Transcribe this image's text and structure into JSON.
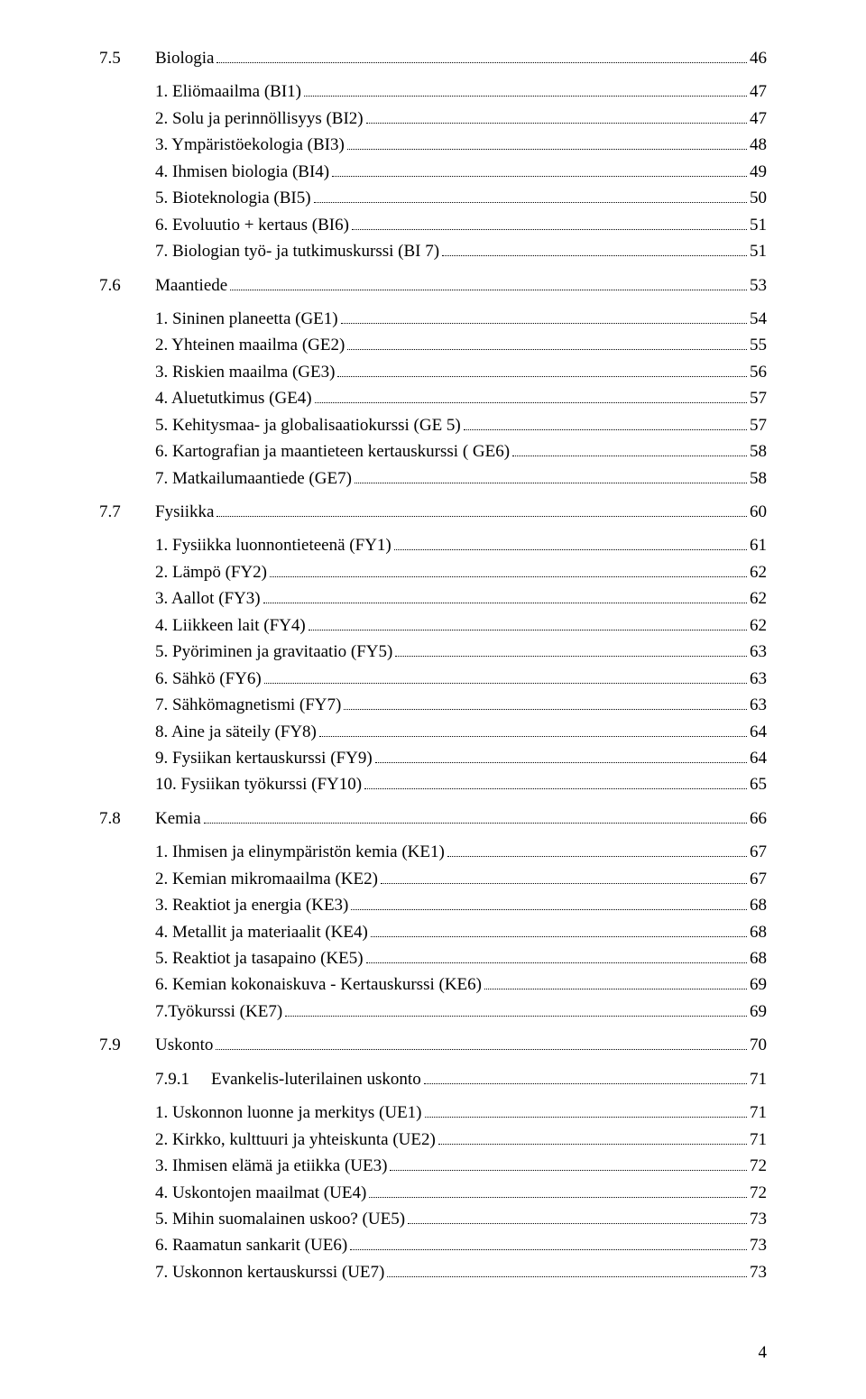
{
  "page_number": "4",
  "sections": [
    {
      "num": "7.5",
      "title": "Biologia",
      "page": "46",
      "items": [
        {
          "label": "1. Eliömaailma (BI1)",
          "page": "47"
        },
        {
          "label": "2. Solu ja perinnöllisyys (BI2)",
          "page": "47"
        },
        {
          "label": "3. Ympäristöekologia (BI3)",
          "page": "48"
        },
        {
          "label": "4. Ihmisen biologia (BI4)",
          "page": "49"
        },
        {
          "label": "5. Bioteknologia (BI5)",
          "page": "50"
        },
        {
          "label": "6. Evoluutio + kertaus (BI6)",
          "page": "51"
        },
        {
          "label": "7. Biologian työ- ja tutkimuskurssi (BI 7)",
          "page": "51"
        }
      ]
    },
    {
      "num": "7.6",
      "title": "Maantiede",
      "page": "53",
      "items": [
        {
          "label": "1. Sininen planeetta (GE1)",
          "page": "54"
        },
        {
          "label": "2. Yhteinen maailma (GE2)",
          "page": "55"
        },
        {
          "label": "3. Riskien maailma (GE3)",
          "page": "56"
        },
        {
          "label": "4. Aluetutkimus (GE4)",
          "page": "57"
        },
        {
          "label": "5. Kehitysmaa- ja globalisaatiokurssi (GE 5)",
          "page": "57"
        },
        {
          "label": "6. Kartografian ja maantieteen kertauskurssi ( GE6)",
          "page": "58"
        },
        {
          "label": "7. Matkailumaantiede (GE7)",
          "page": "58"
        }
      ]
    },
    {
      "num": "7.7",
      "title": "Fysiikka",
      "page": "60",
      "items": [
        {
          "label": "1. Fysiikka luonnontieteenä (FY1)",
          "page": "61"
        },
        {
          "label": "2. Lämpö (FY2)",
          "page": "62"
        },
        {
          "label": "3. Aallot (FY3)",
          "page": "62"
        },
        {
          "label": "4. Liikkeen lait (FY4)",
          "page": "62"
        },
        {
          "label": "5. Pyöriminen ja gravitaatio (FY5)",
          "page": "63"
        },
        {
          "label": "6. Sähkö (FY6)",
          "page": "63"
        },
        {
          "label": "7. Sähkömagnetismi (FY7)",
          "page": "63"
        },
        {
          "label": "8. Aine ja säteily (FY8)",
          "page": "64"
        },
        {
          "label": "9. Fysiikan kertauskurssi (FY9)",
          "page": "64"
        },
        {
          "label": "10. Fysiikan työkurssi (FY10)",
          "page": "65"
        }
      ]
    },
    {
      "num": "7.8",
      "title": "Kemia",
      "page": "66",
      "items": [
        {
          "label": "1. Ihmisen ja elinympäristön kemia (KE1)",
          "page": "67"
        },
        {
          "label": "2. Kemian mikromaailma (KE2)",
          "page": "67"
        },
        {
          "label": "3. Reaktiot ja energia (KE3)",
          "page": "68"
        },
        {
          "label": "4. Metallit ja materiaalit (KE4)",
          "page": "68"
        },
        {
          "label": "5. Reaktiot ja tasapaino (KE5)",
          "page": "68"
        },
        {
          "label": "6. Kemian kokonaiskuva - Kertauskurssi (KE6)",
          "page": "69"
        },
        {
          "label": "7.Työkurssi (KE7)",
          "page": "69"
        }
      ]
    },
    {
      "num": "7.9",
      "title": "Uskonto",
      "page": "70",
      "items": []
    }
  ],
  "subsections": [
    {
      "num": "7.9.1",
      "title": "Evankelis-luterilainen uskonto",
      "page": "71",
      "items": [
        {
          "label": "1. Uskonnon luonne ja merkitys (UE1)",
          "page": "71"
        },
        {
          "label": "2. Kirkko, kulttuuri ja yhteiskunta (UE2)",
          "page": "71"
        },
        {
          "label": "3. Ihmisen elämä ja etiikka (UE3)",
          "page": "72"
        },
        {
          "label": "4. Uskontojen maailmat (UE4)",
          "page": "72"
        },
        {
          "label": "5. Mihin suomalainen uskoo? (UE5)",
          "page": "73"
        },
        {
          "label": "6. Raamatun sankarit (UE6)",
          "page": "73"
        },
        {
          "label": "7. Uskonnon kertauskurssi (UE7)",
          "page": "73"
        }
      ]
    }
  ]
}
